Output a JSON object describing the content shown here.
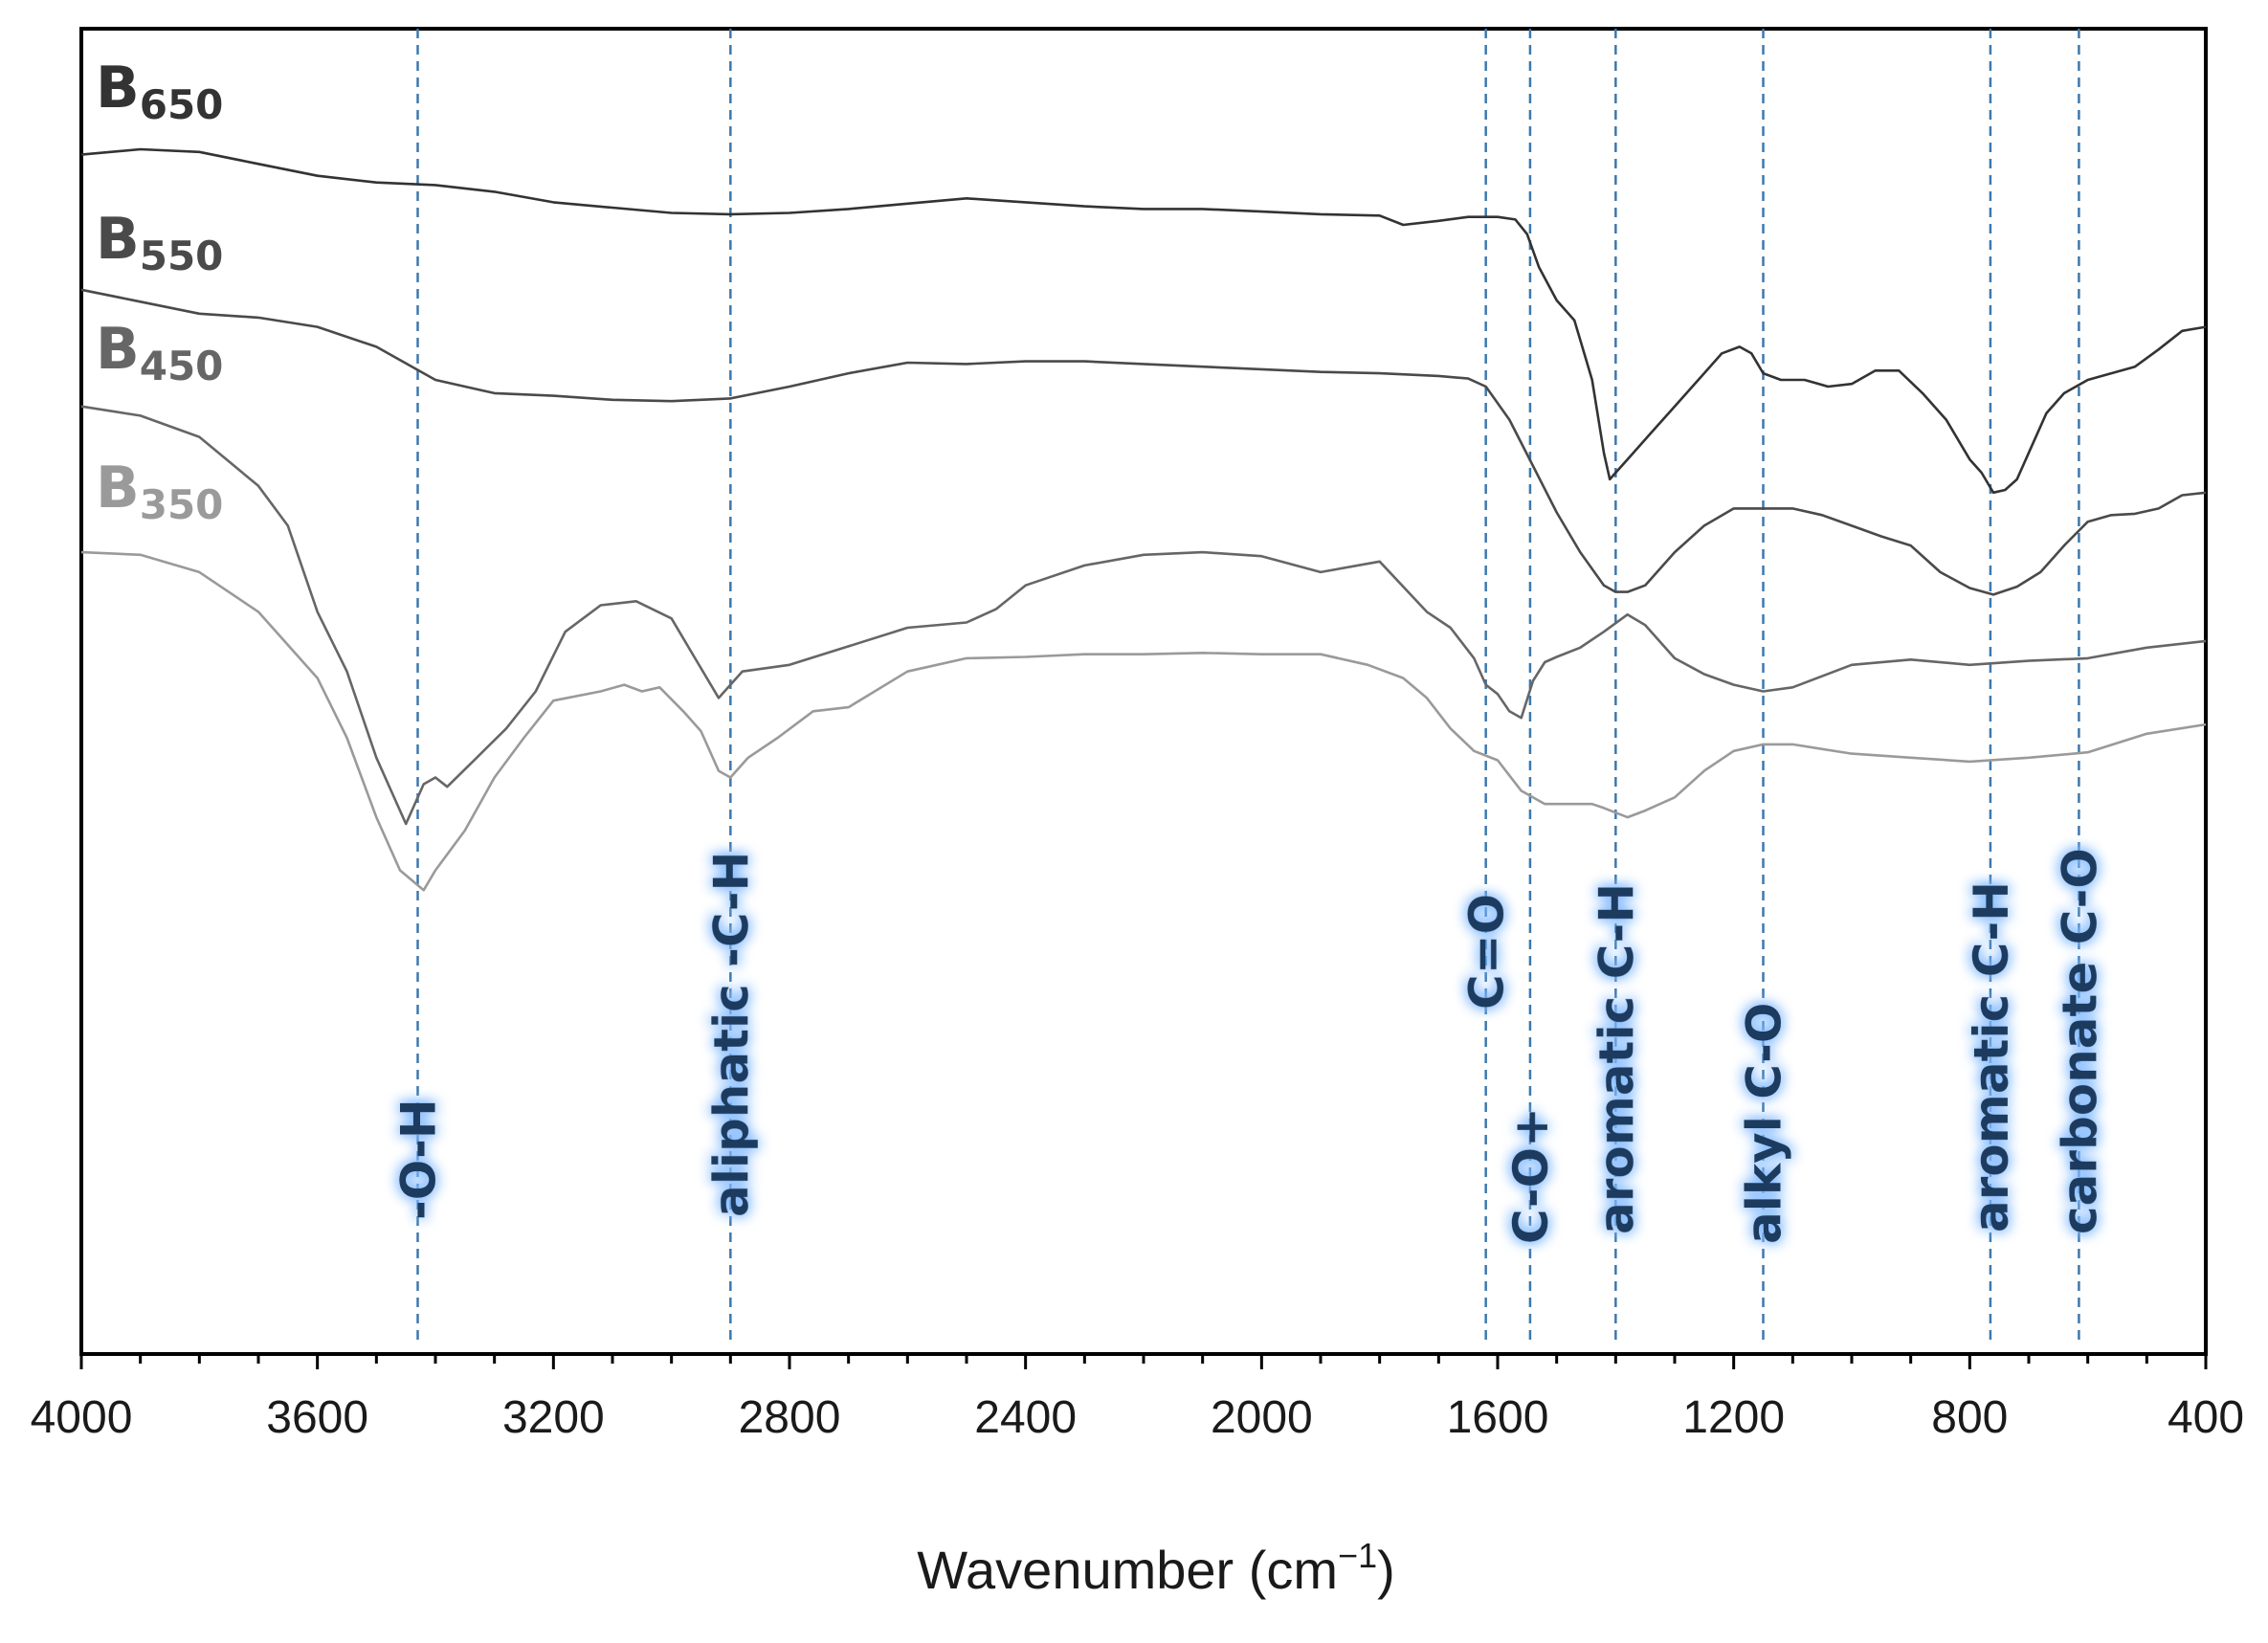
{
  "chart_data": {
    "type": "line",
    "xlabel": "Wavenumber (cm",
    "xlabel_sup": "−1",
    "xlabel_close": ")",
    "xlim": [
      4000,
      400
    ],
    "x_ticks": [
      "4000",
      "3600",
      "3200",
      "2800",
      "2400",
      "2000",
      "1600",
      "1200",
      "800",
      "400"
    ],
    "ylim": [
      0,
      100
    ],
    "series": [
      {
        "name": "B650",
        "label_main": "B",
        "label_sub": "650",
        "color": "#333333",
        "points": [
          [
            4000,
            90.5
          ],
          [
            3900,
            90.9
          ],
          [
            3800,
            90.7
          ],
          [
            3700,
            89.8
          ],
          [
            3600,
            88.9
          ],
          [
            3500,
            88.4
          ],
          [
            3400,
            88.2
          ],
          [
            3300,
            87.7
          ],
          [
            3200,
            86.9
          ],
          [
            3100,
            86.5
          ],
          [
            3000,
            86.1
          ],
          [
            2900,
            86.0
          ],
          [
            2800,
            86.1
          ],
          [
            2700,
            86.4
          ],
          [
            2600,
            86.8
          ],
          [
            2500,
            87.2
          ],
          [
            2400,
            86.9
          ],
          [
            2300,
            86.6
          ],
          [
            2200,
            86.4
          ],
          [
            2100,
            86.4
          ],
          [
            2000,
            86.2
          ],
          [
            1900,
            86.0
          ],
          [
            1800,
            85.9
          ],
          [
            1760,
            85.2
          ],
          [
            1700,
            85.5
          ],
          [
            1650,
            85.8
          ],
          [
            1600,
            85.8
          ],
          [
            1570,
            85.6
          ],
          [
            1550,
            84.5
          ],
          [
            1530,
            82.0
          ],
          [
            1500,
            79.5
          ],
          [
            1470,
            78.0
          ],
          [
            1440,
            73.5
          ],
          [
            1420,
            68.0
          ],
          [
            1410,
            66.0
          ],
          [
            1400,
            66.5
          ],
          [
            1380,
            67.5
          ],
          [
            1340,
            69.5
          ],
          [
            1300,
            71.5
          ],
          [
            1260,
            73.5
          ],
          [
            1220,
            75.5
          ],
          [
            1190,
            76.0
          ],
          [
            1170,
            75.5
          ],
          [
            1150,
            74.0
          ],
          [
            1120,
            73.5
          ],
          [
            1080,
            73.5
          ],
          [
            1040,
            73.0
          ],
          [
            1000,
            73.2
          ],
          [
            960,
            74.2
          ],
          [
            920,
            74.2
          ],
          [
            880,
            72.5
          ],
          [
            840,
            70.5
          ],
          [
            800,
            67.5
          ],
          [
            780,
            66.5
          ],
          [
            760,
            65.0
          ],
          [
            740,
            65.2
          ],
          [
            720,
            66.0
          ],
          [
            700,
            68.0
          ],
          [
            670,
            71.0
          ],
          [
            640,
            72.5
          ],
          [
            600,
            73.5
          ],
          [
            560,
            74.0
          ],
          [
            520,
            74.5
          ],
          [
            480,
            75.8
          ],
          [
            440,
            77.2
          ],
          [
            400,
            77.5
          ]
        ]
      },
      {
        "name": "B550",
        "label_main": "B",
        "label_sub": "550",
        "color": "#4a4a4a",
        "points": [
          [
            4000,
            80.3
          ],
          [
            3900,
            79.4
          ],
          [
            3800,
            78.5
          ],
          [
            3700,
            78.2
          ],
          [
            3600,
            77.5
          ],
          [
            3500,
            76.0
          ],
          [
            3400,
            73.5
          ],
          [
            3300,
            72.5
          ],
          [
            3200,
            72.3
          ],
          [
            3100,
            72.0
          ],
          [
            3000,
            71.9
          ],
          [
            2900,
            72.1
          ],
          [
            2800,
            73.0
          ],
          [
            2700,
            74.0
          ],
          [
            2600,
            74.8
          ],
          [
            2500,
            74.7
          ],
          [
            2400,
            74.9
          ],
          [
            2300,
            74.9
          ],
          [
            2200,
            74.7
          ],
          [
            2100,
            74.5
          ],
          [
            2000,
            74.3
          ],
          [
            1900,
            74.1
          ],
          [
            1800,
            74.0
          ],
          [
            1700,
            73.8
          ],
          [
            1650,
            73.6
          ],
          [
            1620,
            73.0
          ],
          [
            1580,
            70.5
          ],
          [
            1540,
            67.0
          ],
          [
            1500,
            63.5
          ],
          [
            1460,
            60.5
          ],
          [
            1420,
            58.0
          ],
          [
            1400,
            57.5
          ],
          [
            1380,
            57.5
          ],
          [
            1350,
            58.0
          ],
          [
            1300,
            60.5
          ],
          [
            1250,
            62.5
          ],
          [
            1200,
            63.8
          ],
          [
            1150,
            63.8
          ],
          [
            1100,
            63.8
          ],
          [
            1050,
            63.3
          ],
          [
            1000,
            62.5
          ],
          [
            950,
            61.7
          ],
          [
            900,
            61.0
          ],
          [
            850,
            59.0
          ],
          [
            800,
            57.8
          ],
          [
            760,
            57.3
          ],
          [
            720,
            57.9
          ],
          [
            680,
            59.0
          ],
          [
            640,
            61.0
          ],
          [
            600,
            62.8
          ],
          [
            560,
            63.3
          ],
          [
            520,
            63.4
          ],
          [
            480,
            63.8
          ],
          [
            440,
            64.8
          ],
          [
            400,
            65.0
          ]
        ]
      },
      {
        "name": "B450",
        "label_main": "B",
        "label_sub": "450",
        "color": "#666666",
        "points": [
          [
            4000,
            71.5
          ],
          [
            3900,
            70.8
          ],
          [
            3800,
            69.2
          ],
          [
            3700,
            65.5
          ],
          [
            3650,
            62.5
          ],
          [
            3600,
            56.0
          ],
          [
            3550,
            51.5
          ],
          [
            3500,
            45.0
          ],
          [
            3450,
            40.0
          ],
          [
            3420,
            43.0
          ],
          [
            3400,
            43.5
          ],
          [
            3380,
            42.8
          ],
          [
            3330,
            45.0
          ],
          [
            3280,
            47.2
          ],
          [
            3230,
            50.0
          ],
          [
            3180,
            54.5
          ],
          [
            3120,
            56.5
          ],
          [
            3060,
            56.8
          ],
          [
            3000,
            55.5
          ],
          [
            2960,
            52.5
          ],
          [
            2920,
            49.5
          ],
          [
            2880,
            51.5
          ],
          [
            2800,
            52.0
          ],
          [
            2700,
            53.4
          ],
          [
            2600,
            54.8
          ],
          [
            2500,
            55.2
          ],
          [
            2450,
            56.2
          ],
          [
            2400,
            58.0
          ],
          [
            2300,
            59.5
          ],
          [
            2200,
            60.3
          ],
          [
            2100,
            60.5
          ],
          [
            2000,
            60.2
          ],
          [
            1900,
            59.0
          ],
          [
            1800,
            59.8
          ],
          [
            1720,
            56.0
          ],
          [
            1680,
            54.8
          ],
          [
            1640,
            52.5
          ],
          [
            1620,
            50.5
          ],
          [
            1600,
            49.8
          ],
          [
            1580,
            48.5
          ],
          [
            1560,
            48.0
          ],
          [
            1540,
            50.8
          ],
          [
            1520,
            52.2
          ],
          [
            1500,
            52.6
          ],
          [
            1460,
            53.3
          ],
          [
            1420,
            54.5
          ],
          [
            1380,
            55.8
          ],
          [
            1350,
            55.0
          ],
          [
            1300,
            52.5
          ],
          [
            1250,
            51.3
          ],
          [
            1200,
            50.5
          ],
          [
            1150,
            50.0
          ],
          [
            1100,
            50.3
          ],
          [
            1000,
            52.0
          ],
          [
            900,
            52.4
          ],
          [
            800,
            52.0
          ],
          [
            700,
            52.3
          ],
          [
            600,
            52.5
          ],
          [
            500,
            53.3
          ],
          [
            400,
            53.8
          ]
        ]
      },
      {
        "name": "B350",
        "label_main": "B",
        "label_sub": "350",
        "color": "#9a9a9a",
        "points": [
          [
            4000,
            60.5
          ],
          [
            3900,
            60.3
          ],
          [
            3800,
            59.0
          ],
          [
            3700,
            56.0
          ],
          [
            3600,
            51.0
          ],
          [
            3550,
            46.5
          ],
          [
            3500,
            40.5
          ],
          [
            3460,
            36.5
          ],
          [
            3420,
            35.0
          ],
          [
            3400,
            36.5
          ],
          [
            3350,
            39.5
          ],
          [
            3300,
            43.5
          ],
          [
            3250,
            46.5
          ],
          [
            3200,
            49.3
          ],
          [
            3120,
            50.0
          ],
          [
            3080,
            50.5
          ],
          [
            3050,
            50.0
          ],
          [
            3020,
            50.3
          ],
          [
            2980,
            48.5
          ],
          [
            2950,
            47.0
          ],
          [
            2920,
            44.0
          ],
          [
            2900,
            43.5
          ],
          [
            2870,
            45.0
          ],
          [
            2820,
            46.5
          ],
          [
            2760,
            48.5
          ],
          [
            2700,
            48.8
          ],
          [
            2600,
            51.5
          ],
          [
            2500,
            52.5
          ],
          [
            2400,
            52.6
          ],
          [
            2300,
            52.8
          ],
          [
            2200,
            52.8
          ],
          [
            2100,
            52.9
          ],
          [
            2000,
            52.8
          ],
          [
            1900,
            52.8
          ],
          [
            1820,
            52.0
          ],
          [
            1760,
            51.0
          ],
          [
            1720,
            49.5
          ],
          [
            1680,
            47.2
          ],
          [
            1640,
            45.5
          ],
          [
            1600,
            44.8
          ],
          [
            1560,
            42.5
          ],
          [
            1520,
            41.5
          ],
          [
            1480,
            41.5
          ],
          [
            1440,
            41.5
          ],
          [
            1420,
            41.2
          ],
          [
            1380,
            40.5
          ],
          [
            1350,
            41.0
          ],
          [
            1300,
            42.0
          ],
          [
            1250,
            44.0
          ],
          [
            1200,
            45.5
          ],
          [
            1150,
            46.0
          ],
          [
            1100,
            46.0
          ],
          [
            1000,
            45.3
          ],
          [
            900,
            45.0
          ],
          [
            800,
            44.7
          ],
          [
            700,
            45.0
          ],
          [
            600,
            45.4
          ],
          [
            500,
            46.8
          ],
          [
            400,
            47.5
          ]
        ]
      }
    ],
    "bands": [
      {
        "label": "-O-H",
        "x": 3430
      },
      {
        "label": "aliphatic -C-H",
        "x": 2900
      },
      {
        "label": "C=O",
        "x": 1620
      },
      {
        "label": "C-O+",
        "x": 1545
      },
      {
        "label": "aromatic C-H",
        "x": 1400
      },
      {
        "label": "alkyl C-O",
        "x": 1150
      },
      {
        "label": "aromatic C-H",
        "x": 765
      },
      {
        "label": "carbonate C-O",
        "x": 615
      }
    ]
  }
}
